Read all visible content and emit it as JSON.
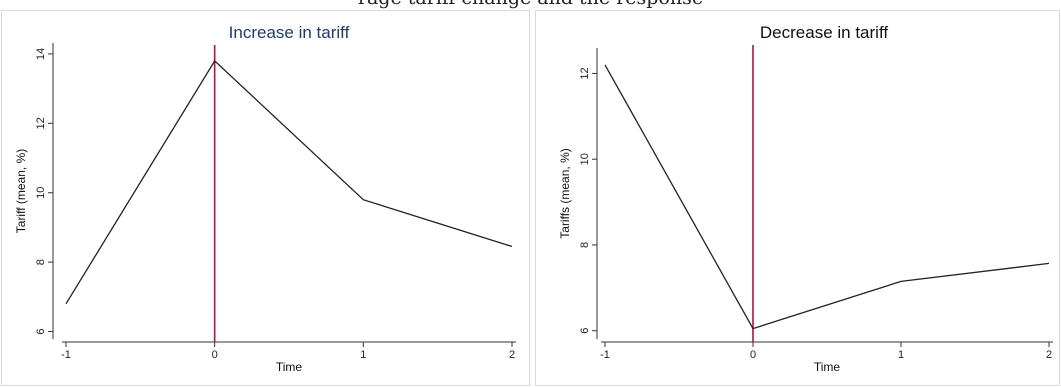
{
  "figure": {
    "clipped_heading": "rage tariff change and the response"
  },
  "chart_data": [
    {
      "type": "line",
      "title": "Increase in tariff",
      "title_color": "#1f3a6e",
      "xlabel": "Time",
      "ylabel": "Tariff (mean, %)",
      "x": [
        -1,
        0,
        1,
        2
      ],
      "x_ticks": [
        "-1",
        "0",
        "1",
        "2"
      ],
      "y_ticks": [
        "6",
        "8",
        "10",
        "12",
        "14"
      ],
      "ylim": [
        5.9,
        14.2
      ],
      "series": [
        {
          "values": [
            6.8,
            13.8,
            9.8,
            8.45
          ],
          "color": "#222222"
        }
      ],
      "vline": {
        "x": 0,
        "color": "#b0124a"
      },
      "grid": false
    },
    {
      "type": "line",
      "title": "Decrease in tariff",
      "title_color": "#111111",
      "xlabel": "Time",
      "ylabel": "Tariffs (mean, %)",
      "x": [
        -1,
        0,
        1,
        2
      ],
      "x_ticks": [
        "-1",
        "0",
        "1",
        "2"
      ],
      "y_ticks": [
        "6",
        "8",
        "10",
        "12"
      ],
      "ylim": [
        5.9,
        12.5
      ],
      "series": [
        {
          "values": [
            12.2,
            6.05,
            7.15,
            7.57
          ],
          "color": "#222222"
        }
      ],
      "vline": {
        "x": 0,
        "color": "#b0124a"
      },
      "grid": false
    }
  ]
}
